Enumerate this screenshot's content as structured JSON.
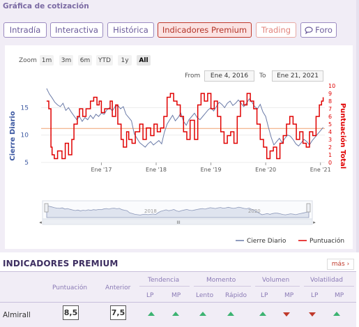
{
  "page": {
    "section_title": "Gráfica de cotización"
  },
  "tabs": [
    {
      "label": "Intradía",
      "state": "normal"
    },
    {
      "label": "Interactiva",
      "state": "normal"
    },
    {
      "label": "Histórica",
      "state": "normal"
    },
    {
      "label": "Indicadores Premium",
      "state": "active"
    },
    {
      "label": "Trading",
      "state": "muted"
    },
    {
      "label": "Foro",
      "state": "normal",
      "icon": "chat-bubble-icon"
    }
  ],
  "zoom": {
    "label": "Zoom",
    "buttons": [
      "1m",
      "3m",
      "6m",
      "YTD",
      "1y",
      "All"
    ],
    "selected": "All"
  },
  "range": {
    "from_label": "From",
    "from_value": "Ene 4, 2016",
    "to_label": "To",
    "to_value": "Ene 21, 2021"
  },
  "chart_data": {
    "type": "line",
    "ylabel_left": "Cierre Diario",
    "ylabel_right": "Puntuación Total",
    "y_left_ticks": [
      "15",
      "10",
      "5"
    ],
    "y_right_ticks": [
      "10",
      "9",
      "8",
      "7",
      "6",
      "5",
      "4",
      "3",
      "2",
      "1",
      "0"
    ],
    "x_ticks": [
      "Ene '17",
      "Ene '18",
      "Ene '19",
      "Ene '20",
      "Ene '21"
    ],
    "y_left_range": [
      5,
      19
    ],
    "y_right_range": [
      0,
      10
    ],
    "reference_line_left": 11.2,
    "series": [
      {
        "name": "Cierre Diario",
        "axis": "left",
        "color": "#6b7ba8",
        "x": [
          2016.0,
          2016.05,
          2016.1,
          2016.15,
          2016.2,
          2016.25,
          2016.3,
          2016.35,
          2016.4,
          2016.45,
          2016.5,
          2016.55,
          2016.6,
          2016.65,
          2016.7,
          2016.75,
          2016.8,
          2016.85,
          2016.9,
          2016.95,
          2017.0,
          2017.05,
          2017.1,
          2017.15,
          2017.2,
          2017.25,
          2017.3,
          2017.35,
          2017.4,
          2017.45,
          2017.5,
          2017.55,
          2017.6,
          2017.65,
          2017.7,
          2017.75,
          2017.8,
          2017.85,
          2017.9,
          2017.95,
          2018.0,
          2018.05,
          2018.1,
          2018.15,
          2018.2,
          2018.25,
          2018.3,
          2018.35,
          2018.4,
          2018.45,
          2018.5,
          2018.55,
          2018.6,
          2018.65,
          2018.7,
          2018.75,
          2018.8,
          2018.85,
          2018.9,
          2018.95,
          2019.0,
          2019.05,
          2019.1,
          2019.15,
          2019.2,
          2019.25,
          2019.3,
          2019.35,
          2019.4,
          2019.45,
          2019.5,
          2019.55,
          2019.6,
          2019.65,
          2019.7,
          2019.75,
          2019.8,
          2019.85,
          2019.9,
          2019.95,
          2020.0,
          2020.05,
          2020.1,
          2020.15,
          2020.2,
          2020.25,
          2020.3,
          2020.35,
          2020.4,
          2020.45,
          2020.5,
          2020.55,
          2020.6,
          2020.65,
          2020.7,
          2020.75,
          2020.8,
          2020.85,
          2020.9,
          2020.95,
          2021.0,
          2021.05
        ],
        "y": [
          18.5,
          17.5,
          16.8,
          16.0,
          15.5,
          15.2,
          15.8,
          14.5,
          15.0,
          14.2,
          13.5,
          12.8,
          13.4,
          12.5,
          13.2,
          12.8,
          13.6,
          13.0,
          13.8,
          13.4,
          14.0,
          13.8,
          14.6,
          15.0,
          14.4,
          15.2,
          15.4,
          14.8,
          15.2,
          13.8,
          13.2,
          12.6,
          10.2,
          9.4,
          8.6,
          8.2,
          7.8,
          8.4,
          8.8,
          8.2,
          8.6,
          9.0,
          8.4,
          10.5,
          12.0,
          12.8,
          13.6,
          12.6,
          13.2,
          14.0,
          12.5,
          11.8,
          12.8,
          13.4,
          14.0,
          13.2,
          12.8,
          13.4,
          14.0,
          14.6,
          15.0,
          14.4,
          15.2,
          16.0,
          15.6,
          15.0,
          15.8,
          16.2,
          15.4,
          15.8,
          16.4,
          15.8,
          15.2,
          15.8,
          16.6,
          16.0,
          15.2,
          14.8,
          15.6,
          14.2,
          13.4,
          11.4,
          9.6,
          8.2,
          8.8,
          9.4,
          8.6,
          9.4,
          10.0,
          9.8,
          9.2,
          8.4,
          8.0,
          8.6,
          9.2,
          8.8,
          8.2,
          9.0,
          9.6,
          10.2,
          10.8,
          11.4
        ]
      },
      {
        "name": "Puntuación",
        "axis": "right",
        "color": "#e00000",
        "x": [
          2016.0,
          2016.04,
          2016.08,
          2016.1,
          2016.14,
          2016.2,
          2016.28,
          2016.34,
          2016.4,
          2016.46,
          2016.5,
          2016.56,
          2016.6,
          2016.66,
          2016.72,
          2016.8,
          2016.86,
          2016.92,
          2016.96,
          2017.0,
          2017.06,
          2017.1,
          2017.16,
          2017.2,
          2017.26,
          2017.3,
          2017.36,
          2017.4,
          2017.46,
          2017.5,
          2017.56,
          2017.62,
          2017.7,
          2017.76,
          2017.82,
          2017.9,
          2017.96,
          2018.02,
          2018.08,
          2018.14,
          2018.2,
          2018.26,
          2018.32,
          2018.38,
          2018.44,
          2018.5,
          2018.56,
          2018.62,
          2018.7,
          2018.76,
          2018.82,
          2018.88,
          2018.94,
          2019.0,
          2019.06,
          2019.12,
          2019.18,
          2019.24,
          2019.3,
          2019.36,
          2019.42,
          2019.48,
          2019.54,
          2019.6,
          2019.66,
          2019.72,
          2019.78,
          2019.84,
          2019.9,
          2019.96,
          2020.02,
          2020.08,
          2020.14,
          2020.2,
          2020.26,
          2020.32,
          2020.38,
          2020.44,
          2020.5,
          2020.56,
          2020.62,
          2020.68,
          2020.74,
          2020.8,
          2020.86,
          2020.92,
          2020.98,
          2021.02,
          2021.05
        ],
        "y": [
          8.0,
          7.0,
          2.0,
          1.0,
          0.5,
          1.5,
          0.5,
          2.5,
          1.0,
          3.0,
          5.0,
          6.0,
          7.0,
          6.0,
          7.0,
          8.0,
          8.5,
          7.5,
          8.0,
          6.5,
          7.0,
          7.0,
          8.0,
          6.0,
          7.5,
          5.0,
          3.0,
          2.0,
          4.0,
          3.0,
          2.5,
          4.0,
          5.0,
          3.0,
          4.5,
          3.5,
          5.0,
          4.0,
          4.5,
          6.0,
          8.5,
          9.0,
          8.0,
          7.5,
          6.0,
          4.0,
          3.0,
          5.5,
          3.0,
          7.5,
          9.0,
          8.0,
          9.0,
          7.0,
          8.0,
          6.0,
          4.0,
          2.5,
          3.5,
          4.0,
          2.5,
          6.0,
          8.0,
          7.5,
          9.0,
          8.0,
          7.0,
          5.0,
          3.0,
          2.0,
          0.5,
          1.5,
          2.0,
          0.5,
          2.5,
          3.5,
          5.0,
          6.0,
          5.0,
          3.0,
          4.0,
          2.5,
          2.0,
          4.0,
          3.5,
          6.0,
          7.5,
          8.0,
          8.5
        ]
      }
    ],
    "navigator_ticks": [
      "2018",
      "2020"
    ],
    "legend": [
      {
        "name": "Cierre Diario",
        "color": "#6b7ba8"
      },
      {
        "name": "Puntuación",
        "color": "#e00000"
      }
    ],
    "legend_position": "bottom-right"
  },
  "premium": {
    "title": "INDICADORES PREMIUM",
    "more_label": "más",
    "groups": [
      "Tendencia",
      "Momento",
      "Volumen",
      "Volatilidad"
    ],
    "columns": {
      "puntuacion": "Puntuación",
      "anterior": "Anterior",
      "sub": [
        "LP",
        "MP",
        "Lento",
        "Rápido",
        "LP",
        "MP",
        "LP",
        "MP"
      ]
    },
    "rows": [
      {
        "name": "Almirall",
        "puntuacion": "8,5",
        "anterior": "7,5",
        "signals": [
          "up",
          "up",
          "up",
          "up",
          "up",
          "down",
          "down",
          "up"
        ]
      }
    ]
  },
  "colors": {
    "accent": "#7b6aa3",
    "active_tab": "#c0392b",
    "up": "#3cb371",
    "down": "#c0392b"
  }
}
